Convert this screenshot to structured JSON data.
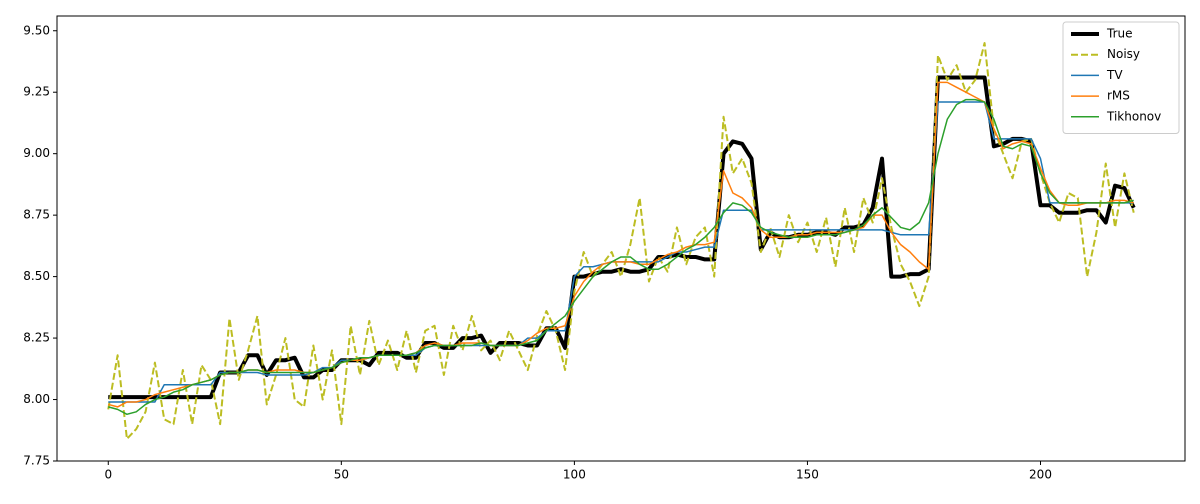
{
  "chart_data": {
    "type": "line",
    "x": [
      0,
      2,
      4,
      6,
      8,
      10,
      12,
      14,
      16,
      18,
      20,
      22,
      24,
      26,
      28,
      30,
      32,
      34,
      36,
      38,
      40,
      42,
      44,
      46,
      48,
      50,
      52,
      54,
      56,
      58,
      60,
      62,
      64,
      66,
      68,
      70,
      72,
      74,
      76,
      78,
      80,
      82,
      84,
      86,
      88,
      90,
      92,
      94,
      96,
      98,
      100,
      102,
      104,
      106,
      108,
      110,
      112,
      114,
      116,
      118,
      120,
      122,
      124,
      126,
      128,
      130,
      132,
      134,
      136,
      138,
      140,
      142,
      144,
      146,
      148,
      150,
      152,
      154,
      156,
      158,
      160,
      162,
      164,
      166,
      168,
      170,
      172,
      174,
      176,
      178,
      180,
      182,
      184,
      186,
      188,
      190,
      192,
      194,
      196,
      198,
      200,
      202,
      204,
      206,
      208,
      210,
      212,
      214,
      216,
      218,
      220
    ],
    "series": [
      {
        "name": "True",
        "color": "#000000",
        "linewidth": 4,
        "values": [
          8.01,
          8.01,
          8.01,
          8.01,
          8.01,
          8.01,
          8.01,
          8.01,
          8.01,
          8.01,
          8.01,
          8.01,
          8.11,
          8.11,
          8.11,
          8.18,
          8.18,
          8.1,
          8.16,
          8.16,
          8.17,
          8.09,
          8.09,
          8.12,
          8.12,
          8.16,
          8.16,
          8.16,
          8.14,
          8.19,
          8.19,
          8.19,
          8.17,
          8.17,
          8.23,
          8.23,
          8.21,
          8.21,
          8.25,
          8.25,
          8.26,
          8.19,
          8.23,
          8.23,
          8.23,
          8.22,
          8.22,
          8.29,
          8.29,
          8.21,
          8.5,
          8.5,
          8.51,
          8.52,
          8.52,
          8.53,
          8.52,
          8.52,
          8.53,
          8.58,
          8.58,
          8.59,
          8.58,
          8.58,
          8.57,
          8.57,
          9.0,
          9.05,
          9.04,
          8.98,
          8.61,
          8.68,
          8.66,
          8.66,
          8.67,
          8.67,
          8.68,
          8.68,
          8.67,
          8.7,
          8.7,
          8.71,
          8.78,
          8.98,
          8.5,
          8.5,
          8.51,
          8.51,
          8.53,
          9.31,
          9.31,
          9.31,
          9.31,
          9.31,
          9.31,
          9.03,
          9.04,
          9.06,
          9.06,
          9.05,
          8.79,
          8.79,
          8.76,
          8.76,
          8.76,
          8.77,
          8.77,
          8.72,
          8.87,
          8.86,
          8.78
        ]
      },
      {
        "name": "Noisy",
        "color": "#bcbd22",
        "linewidth": 2,
        "linestyle": "dashed",
        "values": [
          7.96,
          8.18,
          7.84,
          7.88,
          7.95,
          8.15,
          7.92,
          7.9,
          8.12,
          7.9,
          8.14,
          8.08,
          7.9,
          8.33,
          8.08,
          8.2,
          8.34,
          7.98,
          8.1,
          8.25,
          8.0,
          7.97,
          8.22,
          8.0,
          8.2,
          7.9,
          8.3,
          8.1,
          8.32,
          8.14,
          8.24,
          8.12,
          8.28,
          8.11,
          8.28,
          8.3,
          8.1,
          8.3,
          8.2,
          8.34,
          8.2,
          8.24,
          8.16,
          8.28,
          8.2,
          8.12,
          8.26,
          8.36,
          8.28,
          8.12,
          8.44,
          8.6,
          8.5,
          8.55,
          8.6,
          8.5,
          8.63,
          8.82,
          8.48,
          8.58,
          8.52,
          8.7,
          8.55,
          8.66,
          8.7,
          8.5,
          9.15,
          8.92,
          8.98,
          8.88,
          8.6,
          8.7,
          8.58,
          8.75,
          8.64,
          8.72,
          8.6,
          8.74,
          8.54,
          8.78,
          8.6,
          8.82,
          8.72,
          8.9,
          8.7,
          8.55,
          8.48,
          8.38,
          8.5,
          9.4,
          9.3,
          9.36,
          9.25,
          9.3,
          9.45,
          9.1,
          9.0,
          8.9,
          9.05,
          9.06,
          8.92,
          8.8,
          8.72,
          8.84,
          8.82,
          8.5,
          8.68,
          8.96,
          8.7,
          8.92,
          8.76
        ]
      },
      {
        "name": "TV",
        "color": "#1f77b4",
        "linewidth": 1.5,
        "values": [
          7.99,
          7.99,
          7.99,
          7.99,
          7.99,
          7.99,
          8.06,
          8.06,
          8.06,
          8.06,
          8.06,
          8.06,
          8.11,
          8.11,
          8.11,
          8.11,
          8.11,
          8.1,
          8.1,
          8.1,
          8.1,
          8.1,
          8.11,
          8.13,
          8.13,
          8.16,
          8.16,
          8.16,
          8.17,
          8.18,
          8.18,
          8.18,
          8.18,
          8.18,
          8.21,
          8.22,
          8.22,
          8.22,
          8.22,
          8.22,
          8.22,
          8.22,
          8.22,
          8.22,
          8.22,
          8.25,
          8.25,
          8.28,
          8.28,
          8.28,
          8.5,
          8.54,
          8.54,
          8.55,
          8.56,
          8.56,
          8.56,
          8.56,
          8.56,
          8.56,
          8.58,
          8.6,
          8.6,
          8.61,
          8.62,
          8.62,
          8.77,
          8.77,
          8.77,
          8.77,
          8.69,
          8.69,
          8.69,
          8.69,
          8.69,
          8.69,
          8.69,
          8.69,
          8.69,
          8.69,
          8.69,
          8.69,
          8.69,
          8.69,
          8.68,
          8.67,
          8.67,
          8.67,
          8.67,
          9.21,
          9.21,
          9.21,
          9.21,
          9.21,
          9.21,
          9.06,
          9.06,
          9.06,
          9.06,
          9.06,
          8.98,
          8.8,
          8.8,
          8.8,
          8.8,
          8.8,
          8.8,
          8.8,
          8.8,
          8.8,
          8.8
        ]
      },
      {
        "name": "rMS",
        "color": "#ff7f0e",
        "linewidth": 1.5,
        "values": [
          7.98,
          7.97,
          7.99,
          7.99,
          8.0,
          8.02,
          8.03,
          8.04,
          8.05,
          8.06,
          8.07,
          8.08,
          8.1,
          8.11,
          8.11,
          8.12,
          8.12,
          8.11,
          8.12,
          8.12,
          8.12,
          8.11,
          8.11,
          8.12,
          8.13,
          8.15,
          8.16,
          8.16,
          8.17,
          8.18,
          8.18,
          8.18,
          8.18,
          8.19,
          8.22,
          8.23,
          8.22,
          8.22,
          8.23,
          8.23,
          8.23,
          8.22,
          8.22,
          8.22,
          8.22,
          8.24,
          8.27,
          8.29,
          8.29,
          8.3,
          8.42,
          8.48,
          8.52,
          8.55,
          8.56,
          8.56,
          8.56,
          8.55,
          8.55,
          8.57,
          8.59,
          8.6,
          8.62,
          8.63,
          8.63,
          8.64,
          8.93,
          8.84,
          8.82,
          8.78,
          8.69,
          8.66,
          8.66,
          8.66,
          8.67,
          8.67,
          8.68,
          8.68,
          8.68,
          8.68,
          8.69,
          8.7,
          8.75,
          8.75,
          8.68,
          8.63,
          8.6,
          8.56,
          8.53,
          9.29,
          9.29,
          9.27,
          9.25,
          9.23,
          9.21,
          9.1,
          9.02,
          9.04,
          9.05,
          9.04,
          8.94,
          8.85,
          8.8,
          8.79,
          8.79,
          8.8,
          8.8,
          8.8,
          8.81,
          8.81,
          8.8
        ]
      },
      {
        "name": "Tikhonov",
        "color": "#2ca02c",
        "linewidth": 1.5,
        "values": [
          7.97,
          7.96,
          7.94,
          7.95,
          7.98,
          8.0,
          8.01,
          8.03,
          8.04,
          8.06,
          8.07,
          8.08,
          8.1,
          8.11,
          8.11,
          8.12,
          8.12,
          8.11,
          8.11,
          8.11,
          8.11,
          8.11,
          8.11,
          8.12,
          8.13,
          8.15,
          8.16,
          8.17,
          8.17,
          8.18,
          8.18,
          8.18,
          8.18,
          8.19,
          8.21,
          8.22,
          8.22,
          8.22,
          8.22,
          8.22,
          8.23,
          8.22,
          8.22,
          8.22,
          8.22,
          8.23,
          8.24,
          8.28,
          8.31,
          8.34,
          8.4,
          8.45,
          8.5,
          8.53,
          8.56,
          8.58,
          8.58,
          8.55,
          8.53,
          8.53,
          8.55,
          8.58,
          8.61,
          8.63,
          8.66,
          8.7,
          8.76,
          8.8,
          8.79,
          8.76,
          8.7,
          8.68,
          8.67,
          8.66,
          8.66,
          8.66,
          8.67,
          8.67,
          8.67,
          8.68,
          8.69,
          8.71,
          8.75,
          8.78,
          8.74,
          8.7,
          8.69,
          8.72,
          8.8,
          9.0,
          9.14,
          9.2,
          9.22,
          9.22,
          9.21,
          9.14,
          9.03,
          9.02,
          9.04,
          9.03,
          8.92,
          8.84,
          8.8,
          8.8,
          8.8,
          8.8,
          8.8,
          8.8,
          8.8,
          8.8,
          8.81
        ]
      }
    ],
    "xlim": [
      -11,
      231
    ],
    "ylim": [
      7.75,
      9.56
    ],
    "xticks": [
      0,
      50,
      100,
      150,
      200
    ],
    "yticks": [
      7.75,
      {
        "value": 8,
        "label": "8.00"
      },
      8.25,
      {
        "value": 8.5,
        "label": "8.50"
      },
      8.75,
      {
        "value": 9,
        "label": "9.00"
      },
      9.25,
      {
        "value": 9.5,
        "label": "9.50"
      }
    ],
    "legend": "upper right",
    "grid": false
  }
}
